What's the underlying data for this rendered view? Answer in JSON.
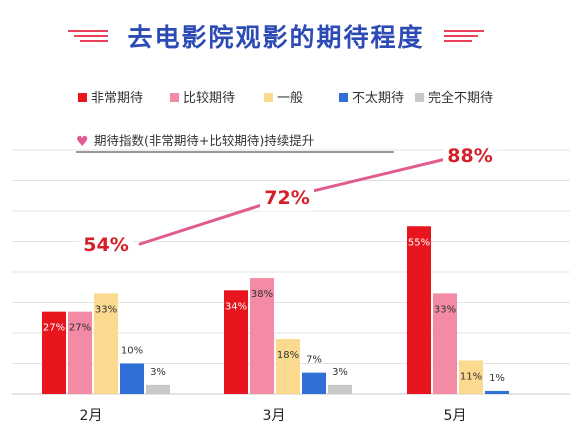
{
  "chart_data": {
    "type": "bar",
    "title": "去电影院观影的期待程度",
    "categories": [
      "2月",
      "3月",
      "5月"
    ],
    "series": [
      {
        "name": "非常期待",
        "color": "#e8141e",
        "values": [
          27,
          34,
          55
        ]
      },
      {
        "name": "比较期待",
        "color": "#f38ba5",
        "values": [
          27,
          38,
          33
        ]
      },
      {
        "name": "一般",
        "color": "#fbd98f",
        "values": [
          33,
          18,
          11
        ]
      },
      {
        "name": "不太期待",
        "color": "#2f6fd6",
        "values": [
          10,
          7,
          1
        ]
      },
      {
        "name": "完全不期待",
        "color": "#c9c9c9",
        "values": [
          3,
          3,
          null
        ]
      }
    ],
    "value_labels": [
      [
        "27%",
        "34%",
        "55%"
      ],
      [
        "27%",
        "38%",
        "33%"
      ],
      [
        "33%",
        "18%",
        "11%"
      ],
      [
        "10%",
        "7%",
        "1%"
      ],
      [
        "3%",
        "3%",
        ""
      ]
    ],
    "index_line": {
      "name": "期待指数(非常期待+比较期待)持续提升",
      "color": "#e05c8f",
      "values": [
        54,
        72,
        88
      ],
      "labels": [
        "54%",
        "72%",
        "88%"
      ]
    },
    "ylim": [
      0,
      80
    ],
    "grid": true,
    "legend_position": "top"
  }
}
